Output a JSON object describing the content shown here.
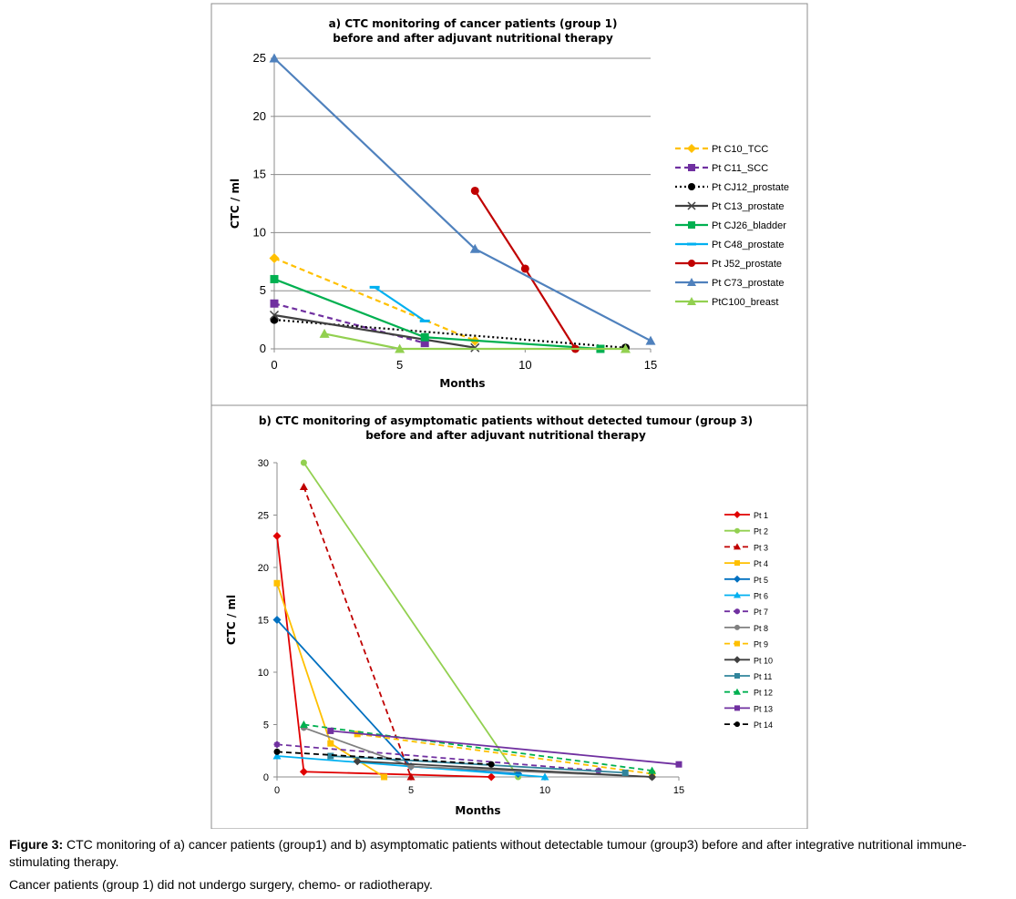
{
  "chart_data": [
    {
      "type": "line",
      "title": "a) CTC monitoring of cancer patients (group 1)",
      "subtitle": "before and after adjuvant nutritional therapy",
      "xlabel": "Months",
      "ylabel": "CTC / ml",
      "xlim": [
        0,
        15
      ],
      "ylim": [
        0,
        25
      ],
      "xticks": [
        0,
        5,
        10,
        15
      ],
      "yticks": [
        0,
        5,
        10,
        15,
        20,
        25
      ],
      "grid": true,
      "legend_position": "right",
      "series": [
        {
          "name": "Pt C10_TCC",
          "color": "#FFC000",
          "dash": "dashed",
          "marker": "diamond",
          "points": [
            [
              0,
              7.8
            ],
            [
              8,
              0.7
            ]
          ]
        },
        {
          "name": "Pt C11_SCC",
          "color": "#7030A0",
          "dash": "dashed",
          "marker": "square",
          "points": [
            [
              0,
              3.9
            ],
            [
              6,
              0.5
            ]
          ]
        },
        {
          "name": "Pt CJ12_prostate",
          "color": "#000000",
          "dash": "dotted",
          "marker": "circle",
          "points": [
            [
              0,
              2.5
            ],
            [
              14,
              0.1
            ]
          ]
        },
        {
          "name": "Pt C13_prostate",
          "color": "#404040",
          "dash": "solid",
          "marker": "x",
          "points": [
            [
              0,
              2.9
            ],
            [
              8,
              0.1
            ]
          ]
        },
        {
          "name": "Pt CJ26_bladder",
          "color": "#00B050",
          "dash": "solid",
          "marker": "square",
          "points": [
            [
              0,
              6.0
            ],
            [
              6,
              1.0
            ],
            [
              13,
              0.0
            ]
          ]
        },
        {
          "name": "Pt C48_prostate",
          "color": "#00B0F0",
          "dash": "solid",
          "marker": "dash",
          "points": [
            [
              4,
              5.3
            ],
            [
              6,
              2.4
            ]
          ]
        },
        {
          "name": "Pt J52_prostate",
          "color": "#C00000",
          "dash": "solid",
          "marker": "circle",
          "points": [
            [
              8,
              13.6
            ],
            [
              10,
              6.9
            ],
            [
              12,
              0.0
            ]
          ]
        },
        {
          "name": "Pt C73_prostate",
          "color": "#4F81BD",
          "dash": "solid",
          "marker": "triangle",
          "points": [
            [
              0,
              25.0
            ],
            [
              8,
              8.6
            ],
            [
              15,
              0.7
            ]
          ]
        },
        {
          "name": "PtC100_breast",
          "color": "#92D050",
          "dash": "solid",
          "marker": "triangle",
          "points": [
            [
              2,
              1.3
            ],
            [
              5,
              0.0
            ],
            [
              14,
              0.0
            ]
          ]
        }
      ]
    },
    {
      "type": "line",
      "title": "b) CTC monitoring of asymptomatic patients without detected tumour (group 3)",
      "subtitle": "before and after adjuvant nutritional therapy",
      "xlabel": "Months",
      "ylabel": "CTC / ml",
      "xlim": [
        0,
        15
      ],
      "ylim": [
        0,
        30
      ],
      "xticks": [
        0,
        5,
        10,
        15
      ],
      "yticks": [
        0,
        5,
        10,
        15,
        20,
        25,
        30
      ],
      "grid": false,
      "legend_position": "right",
      "series": [
        {
          "name": "Pt 1",
          "color": "#E00000",
          "dash": "solid",
          "marker": "diamond",
          "points": [
            [
              0,
              23.0
            ],
            [
              1,
              0.5
            ],
            [
              8,
              0.0
            ]
          ]
        },
        {
          "name": "Pt 2",
          "color": "#92D050",
          "dash": "solid",
          "marker": "circle",
          "points": [
            [
              1,
              30.0
            ],
            [
              9,
              0.0
            ]
          ]
        },
        {
          "name": "Pt 3",
          "color": "#C00000",
          "dash": "dashed",
          "marker": "triangle",
          "points": [
            [
              1,
              27.7
            ],
            [
              5,
              0.0
            ]
          ]
        },
        {
          "name": "Pt 4",
          "color": "#FFC000",
          "dash": "solid",
          "marker": "square",
          "points": [
            [
              0,
              18.5
            ],
            [
              2,
              3.2
            ],
            [
              4,
              0.0
            ]
          ]
        },
        {
          "name": "Pt 5",
          "color": "#0070C0",
          "dash": "solid",
          "marker": "diamond",
          "points": [
            [
              0,
              15.0
            ],
            [
              5,
              1.0
            ],
            [
              9,
              0.3
            ]
          ]
        },
        {
          "name": "Pt 6",
          "color": "#00B0F0",
          "dash": "solid",
          "marker": "triangle",
          "points": [
            [
              0,
              2.0
            ],
            [
              10,
              0.0
            ]
          ]
        },
        {
          "name": "Pt 7",
          "color": "#7030A0",
          "dash": "dashed",
          "marker": "star",
          "points": [
            [
              0,
              3.1
            ],
            [
              12,
              0.6
            ]
          ]
        },
        {
          "name": "Pt 8",
          "color": "#808080",
          "dash": "solid",
          "marker": "circle",
          "points": [
            [
              1,
              4.7
            ],
            [
              5,
              1.0
            ],
            [
              14,
              0.0
            ]
          ]
        },
        {
          "name": "Pt 9",
          "color": "#FFC000",
          "dash": "dashed",
          "marker": "square",
          "points": [
            [
              3,
              4.1
            ],
            [
              14,
              0.3
            ]
          ]
        },
        {
          "name": "Pt 10",
          "color": "#404040",
          "dash": "solid",
          "marker": "diamond",
          "points": [
            [
              3,
              1.5
            ],
            [
              14,
              0.0
            ]
          ]
        },
        {
          "name": "Pt 11",
          "color": "#31859C",
          "dash": "solid",
          "marker": "square",
          "points": [
            [
              2,
              2.0
            ],
            [
              13,
              0.4
            ]
          ]
        },
        {
          "name": "Pt 12",
          "color": "#00B050",
          "dash": "dashed",
          "marker": "triangle",
          "points": [
            [
              1,
              5.0
            ],
            [
              14,
              0.6
            ]
          ]
        },
        {
          "name": "Pt 13",
          "color": "#7030A0",
          "dash": "solid",
          "marker": "square",
          "points": [
            [
              2,
              4.4
            ],
            [
              15,
              1.2
            ]
          ]
        },
        {
          "name": "Pt 14",
          "color": "#000000",
          "dash": "dashed",
          "marker": "circle",
          "points": [
            [
              0,
              2.4
            ],
            [
              8,
              1.2
            ]
          ]
        }
      ]
    }
  ],
  "caption": {
    "label": "Figure 3:",
    "text": "CTC monitoring of a) cancer patients (group1) and b) asymptomatic patients without detectable tumour (group3) before and after integrative nutritional immune-stimulating therapy.",
    "note": "Cancer patients (group 1) did not undergo surgery, chemo- or radiotherapy."
  }
}
